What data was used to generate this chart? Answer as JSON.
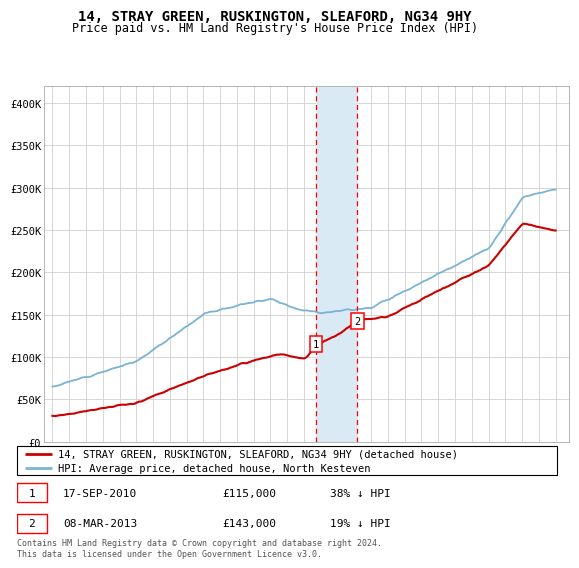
{
  "title": "14, STRAY GREEN, RUSKINGTON, SLEAFORD, NG34 9HY",
  "subtitle": "Price paid vs. HM Land Registry's House Price Index (HPI)",
  "legend_line1": "14, STRAY GREEN, RUSKINGTON, SLEAFORD, NG34 9HY (detached house)",
  "legend_line2": "HPI: Average price, detached house, North Kesteven",
  "sale1_date": "17-SEP-2010",
  "sale1_price": "£115,000",
  "sale1_pct": "38% ↓ HPI",
  "sale2_date": "08-MAR-2013",
  "sale2_price": "£143,000",
  "sale2_pct": "19% ↓ HPI",
  "footnote": "Contains HM Land Registry data © Crown copyright and database right 2024.\nThis data is licensed under the Open Government Licence v3.0.",
  "hpi_color": "#7ab3d4",
  "property_color": "#cc0000",
  "sale1_x": 2010.72,
  "sale2_x": 2013.18,
  "sale1_y": 115000,
  "sale2_y": 143000,
  "shade_color": "#daeaf5",
  "ylim": [
    0,
    420000
  ],
  "yticks": [
    0,
    50000,
    100000,
    150000,
    200000,
    250000,
    300000,
    350000,
    400000
  ],
  "ytick_labels": [
    "£0",
    "£50K",
    "£100K",
    "£150K",
    "£200K",
    "£250K",
    "£300K",
    "£350K",
    "£400K"
  ],
  "xlim": [
    1994.5,
    2025.8
  ],
  "xticks": [
    1995,
    1996,
    1997,
    1998,
    1999,
    2000,
    2001,
    2002,
    2003,
    2004,
    2005,
    2006,
    2007,
    2008,
    2009,
    2010,
    2011,
    2012,
    2013,
    2014,
    2015,
    2016,
    2017,
    2018,
    2019,
    2020,
    2021,
    2022,
    2023,
    2024,
    2025
  ]
}
